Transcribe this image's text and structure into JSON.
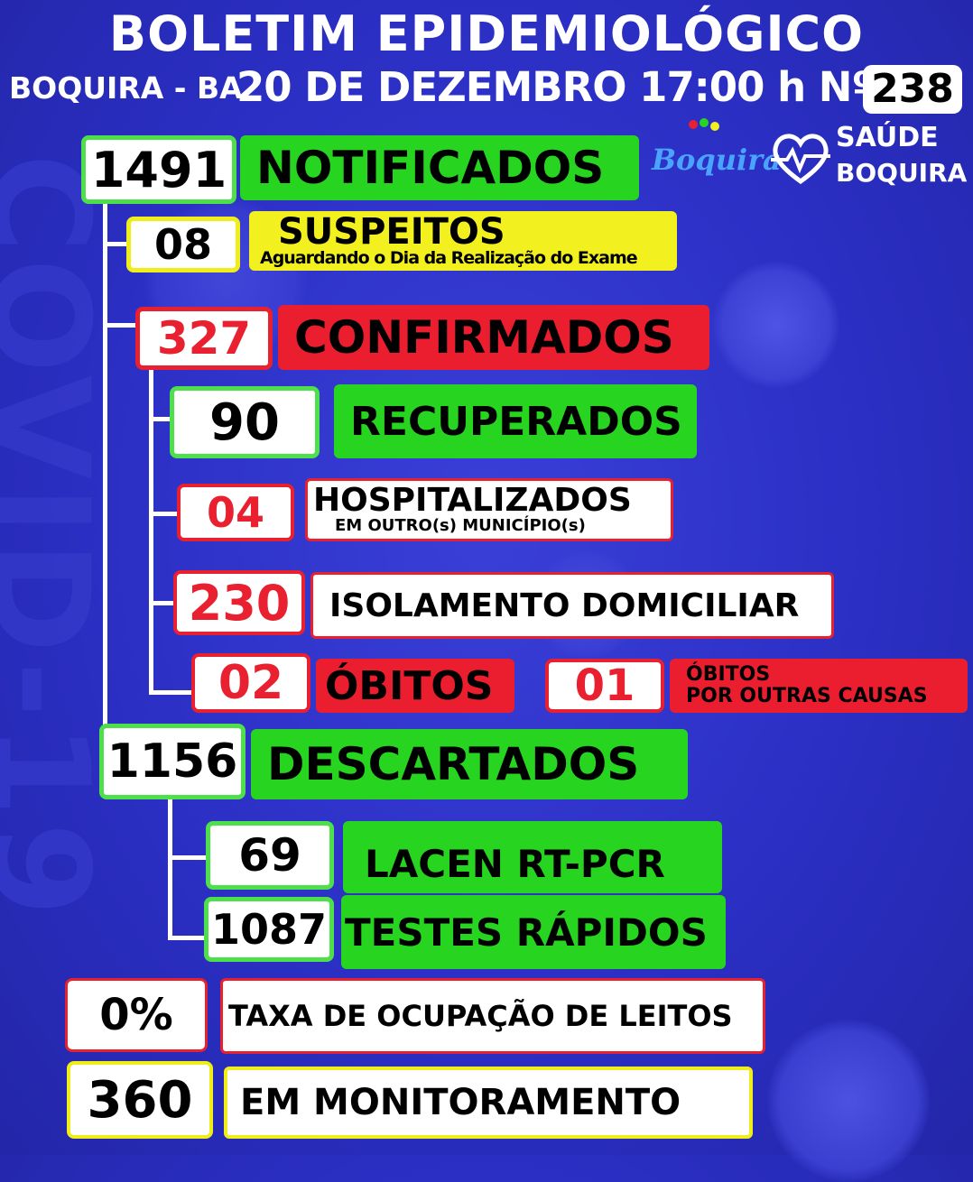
{
  "header": {
    "title": "BOLETIM EPIDEMIOLÓGICO",
    "city": "BOQUIRA - BA",
    "date_time": "20 DE DEZEMBRO 17:00 h Nº:",
    "bulletin_number": "238"
  },
  "logos": {
    "city_logo": "Boquira",
    "health_logo_line1": "SAÚDE",
    "health_logo_line2": "BOQUIRA",
    "health_icon": "heart-pulse-icon"
  },
  "background_text": "COVID-19",
  "stats": {
    "notificados": {
      "value": "1491",
      "label": "NOTIFICADOS"
    },
    "suspeitos": {
      "value": "08",
      "label": "SUSPEITOS",
      "sublabel": "Aguardando o Dia da Realização do Exame"
    },
    "confirmados": {
      "value": "327",
      "label": "CONFIRMADOS"
    },
    "recuperados": {
      "value": "90",
      "label": "RECUPERADOS"
    },
    "hospitalizados": {
      "value": "04",
      "label": "HOSPITALIZADOS",
      "sublabel": "EM OUTRO(s) MUNICÍPIO(s)"
    },
    "isolamento": {
      "value": "230",
      "label": "ISOLAMENTO DOMICILIAR"
    },
    "obitos": {
      "value": "02",
      "label": "ÓBITOS"
    },
    "obitos_outras": {
      "value": "01",
      "label_line1": "ÓBITOS",
      "label_line2": "POR OUTRAS CAUSAS"
    },
    "descartados": {
      "value": "1156",
      "label": "DESCARTADOS"
    },
    "lacen": {
      "value": "69",
      "label": "LACEN RT-PCR"
    },
    "testes_rapidos": {
      "value": "1087",
      "label": "TESTES RÁPIDOS"
    },
    "ocupacao": {
      "value": "0%",
      "label": "TAXA DE OCUPAÇÃO DE LEITOS"
    },
    "monitoramento": {
      "value": "360",
      "label": "EM MONITORAMENTO"
    }
  },
  "colors": {
    "background": "#2b2fc4",
    "green": "#27d420",
    "red": "#ea1e2e",
    "yellow": "#f2f01e",
    "white": "#ffffff"
  }
}
